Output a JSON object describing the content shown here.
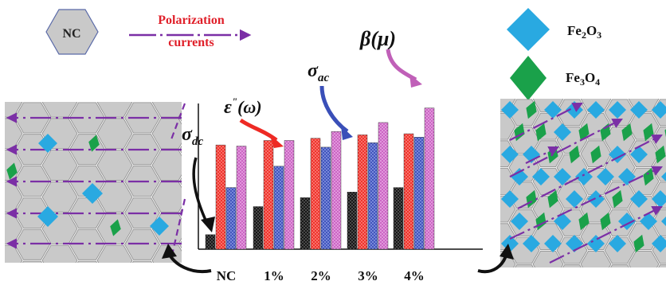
{
  "legend": {
    "nc_label": "NC",
    "polarization_line1": "Polarization",
    "polarization_line2": "currents",
    "fe2o3_main": "Fe",
    "fe2o3_sub1": "2",
    "fe2o3_mid": "O",
    "fe2o3_sub2": "3",
    "fe3o4_main": "Fe",
    "fe3o4_sub1": "3",
    "fe3o4_mid": "O",
    "fe3o4_sub2": "4"
  },
  "annotations": {
    "sigma_dc_symbol": "σ",
    "sigma_dc_sub": "dc",
    "epsilon_symbol": "ε",
    "epsilon_sup": "\"",
    "epsilon_arg": "(ω)",
    "sigma_ac_symbol": "σ",
    "sigma_ac_sub": "ac",
    "beta_text": "β(μ)"
  },
  "colors": {
    "hexagon_fill": "#c9c9c9",
    "hexagon_stroke": "#8a8a8a",
    "fe2o3": "#29a9e1",
    "fe3o4": "#1aa14a",
    "polarization": "#7b2fa6",
    "polarization_label": "#e0202a",
    "sigma_dc_bar": "#111111",
    "epsilon_bar": "#ee2a24",
    "sigma_ac_bar": "#3a4fb8",
    "beta_bar": "#c85fc0",
    "epsilon_arrow": "#ee2a24",
    "sigma_ac_arrow": "#3a4fb8",
    "beta_arrow": "#c060b8"
  },
  "chart_data": {
    "type": "bar",
    "categories": [
      "NC",
      "1%",
      "2%",
      "3%",
      "4%"
    ],
    "series": [
      {
        "name": "σdc",
        "values": [
          0.13,
          0.38,
          0.46,
          0.51,
          0.55
        ]
      },
      {
        "name": "ε\"(ω)",
        "values": [
          0.93,
          0.97,
          0.99,
          1.02,
          1.03
        ]
      },
      {
        "name": "σac",
        "values": [
          0.55,
          0.74,
          0.91,
          0.95,
          1.0
        ]
      },
      {
        "name": "β(μ)",
        "values": [
          0.92,
          0.97,
          1.05,
          1.13,
          1.26
        ]
      }
    ],
    "ylim": [
      0,
      1.3
    ],
    "grid": false,
    "legend": "none"
  }
}
